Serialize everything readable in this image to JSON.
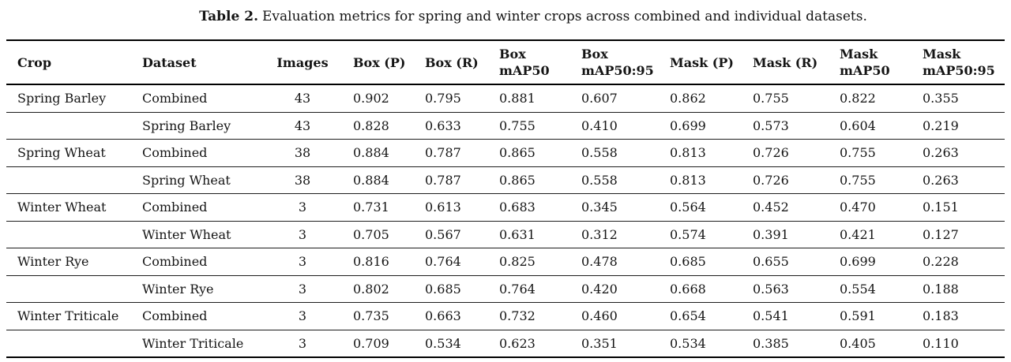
{
  "caption": {
    "label": "Table 2.",
    "text": "Evaluation metrics for spring and winter crops across combined and individual datasets."
  },
  "table": {
    "columns": [
      "Crop",
      "Dataset",
      "Images",
      "Box (P)",
      "Box (R)",
      "Box\nmAP50",
      "Box\nmAP50:95",
      "Mask (P)",
      "Mask (R)",
      "Mask\nmAP50",
      "Mask\nmAP50:95"
    ],
    "rows": [
      [
        "Spring Barley",
        "Combined",
        "43",
        "0.902",
        "0.795",
        "0.881",
        "0.607",
        "0.862",
        "0.755",
        "0.822",
        "0.355"
      ],
      [
        "",
        "Spring Barley",
        "43",
        "0.828",
        "0.633",
        "0.755",
        "0.410",
        "0.699",
        "0.573",
        "0.604",
        "0.219"
      ],
      [
        "Spring Wheat",
        "Combined",
        "38",
        "0.884",
        "0.787",
        "0.865",
        "0.558",
        "0.813",
        "0.726",
        "0.755",
        "0.263"
      ],
      [
        "",
        "Spring Wheat",
        "38",
        "0.884",
        "0.787",
        "0.865",
        "0.558",
        "0.813",
        "0.726",
        "0.755",
        "0.263"
      ],
      [
        "Winter Wheat",
        "Combined",
        "3",
        "0.731",
        "0.613",
        "0.683",
        "0.345",
        "0.564",
        "0.452",
        "0.470",
        "0.151"
      ],
      [
        "",
        "Winter Wheat",
        "3",
        "0.705",
        "0.567",
        "0.631",
        "0.312",
        "0.574",
        "0.391",
        "0.421",
        "0.127"
      ],
      [
        "Winter Rye",
        "Combined",
        "3",
        "0.816",
        "0.764",
        "0.825",
        "0.478",
        "0.685",
        "0.655",
        "0.699",
        "0.228"
      ],
      [
        "",
        "Winter Rye",
        "3",
        "0.802",
        "0.685",
        "0.764",
        "0.420",
        "0.668",
        "0.563",
        "0.554",
        "0.188"
      ],
      [
        "Winter Triticale",
        "Combined",
        "3",
        "0.735",
        "0.663",
        "0.732",
        "0.460",
        "0.654",
        "0.541",
        "0.591",
        "0.183"
      ],
      [
        "",
        "Winter Triticale",
        "3",
        "0.709",
        "0.534",
        "0.623",
        "0.351",
        "0.534",
        "0.385",
        "0.405",
        "0.110"
      ]
    ]
  },
  "colors": {
    "text": "#141414",
    "rule": "#000000",
    "background": "#ffffff"
  }
}
